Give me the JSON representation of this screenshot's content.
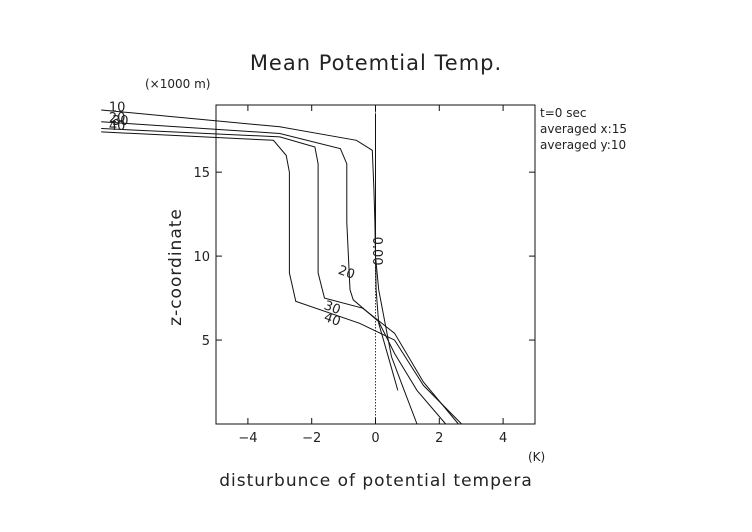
{
  "chart_data": {
    "type": "line",
    "title": "Mean Potemtial Temp.",
    "xlabel": "disturbunce of potential tempera",
    "ylabel": "z-coordinate",
    "x_unit": "(K)",
    "y_unit": "(×1000 m)",
    "xlim": [
      -5,
      5
    ],
    "ylim": [
      0,
      19
    ],
    "x_ticks": [
      -4,
      -2,
      0,
      2,
      4
    ],
    "y_ticks": [
      5,
      10,
      15
    ],
    "info_lines": [
      "t=0 sec",
      "averaged  x:15",
      "averaged  y:10"
    ],
    "grid": false,
    "series": [
      {
        "name": "00",
        "label": "0.00",
        "x": [
          0,
          0,
          0,
          0,
          0.02,
          0.1,
          0.4,
          0.7
        ],
        "y": [
          18.5,
          16,
          12,
          10,
          8,
          6,
          4,
          2
        ]
      },
      {
        "name": "10",
        "label": "10",
        "x": [
          -8.6,
          -3,
          -0.6,
          -0.1,
          -0.05,
          -0.02,
          0,
          0.1,
          0.3,
          0.5,
          0.9,
          1.3
        ],
        "y": [
          18.7,
          17.7,
          16.9,
          16.3,
          14,
          12,
          10,
          8,
          6,
          4,
          2,
          0
        ]
      },
      {
        "name": "20",
        "label": "20",
        "x": [
          -8.6,
          -3,
          -1.1,
          -0.9,
          -0.9,
          -0.85,
          -0.8,
          -0.7,
          0.1,
          0.6,
          1.3,
          2.2
        ],
        "y": [
          18.0,
          17.3,
          16.4,
          15.5,
          12,
          10,
          8,
          7.4,
          6.1,
          4.2,
          2,
          0
        ]
      },
      {
        "name": "30",
        "label": "30",
        "x": [
          -8.6,
          -3,
          -1.9,
          -1.8,
          -1.8,
          -1.8,
          -1.6,
          -0.4,
          0.6,
          1.5,
          2.6
        ],
        "y": [
          17.6,
          17.1,
          16.5,
          15.5,
          12,
          9,
          7.5,
          6.9,
          5.4,
          2.5,
          0
        ]
      },
      {
        "name": "40",
        "label": "40",
        "x": [
          -8.6,
          -3.2,
          -2.8,
          -2.7,
          -2.7,
          -2.7,
          -2.5,
          -0.5,
          0.6,
          1.5,
          2.7
        ],
        "y": [
          17.4,
          16.9,
          16.0,
          15.0,
          12,
          9,
          7.3,
          6.0,
          5.0,
          2.3,
          0
        ]
      }
    ],
    "contour_labels": [
      {
        "text": "10",
        "x": -8.1,
        "y": 18.6
      },
      {
        "text": "20",
        "x": -8.1,
        "y": 18.0
      },
      {
        "text": "30",
        "x": -8.0,
        "y": 17.8
      },
      {
        "text": "40",
        "x": -8.1,
        "y": 17.5
      },
      {
        "text": "0.00",
        "x": -0.08,
        "y": 10.3
      },
      {
        "text": "20",
        "x": -0.95,
        "y": 8.8
      },
      {
        "text": "30",
        "x": -1.4,
        "y": 6.7
      },
      {
        "text": "40",
        "x": -1.4,
        "y": 6.0
      }
    ]
  }
}
